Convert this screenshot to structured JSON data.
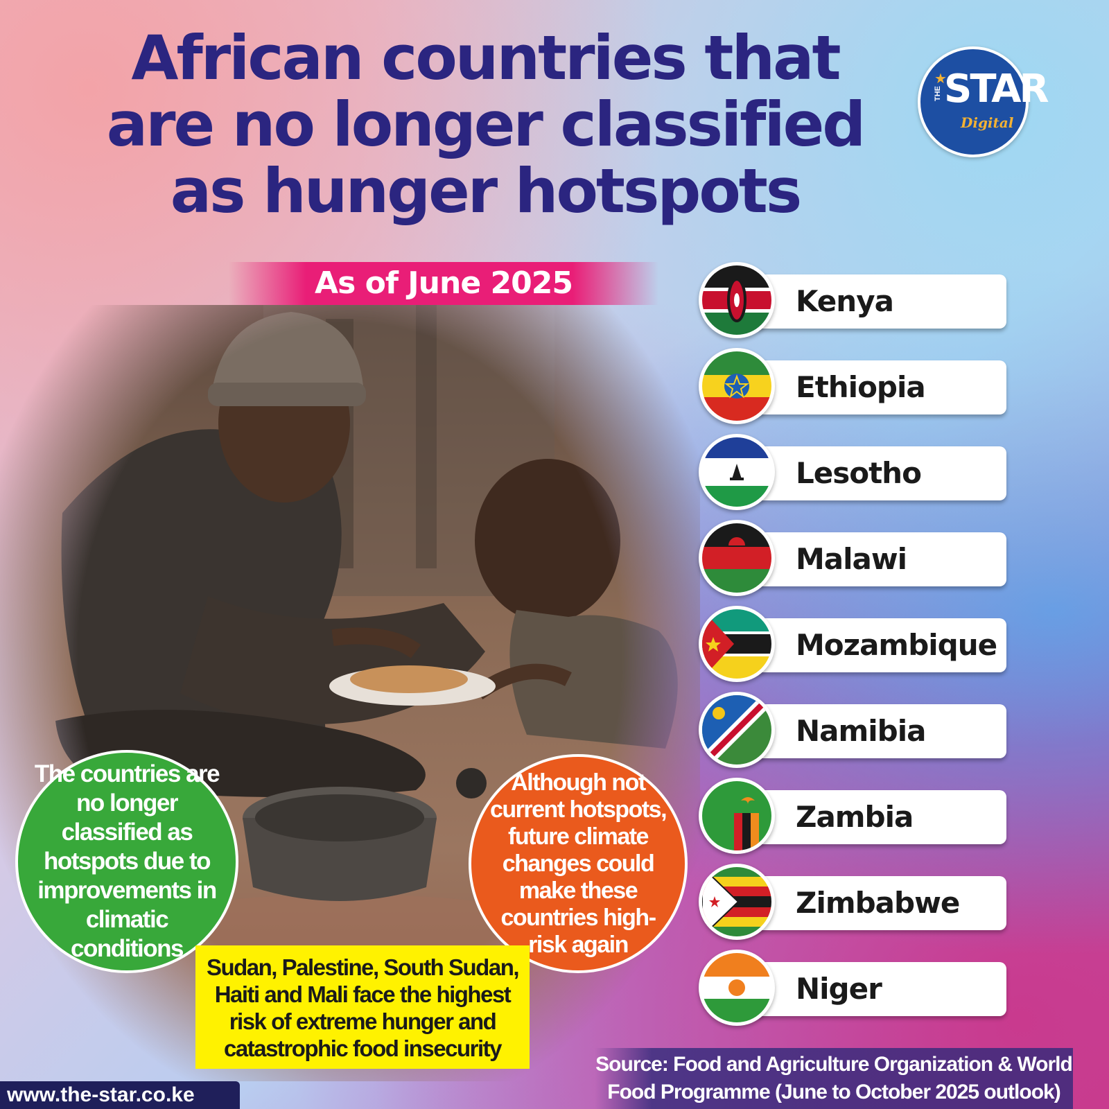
{
  "header": {
    "title_lines": [
      "African countries that",
      "are no longer classified",
      "as hunger hotspots"
    ],
    "date_label": "As of June 2025"
  },
  "logo": {
    "the": "THE",
    "main": "STAR",
    "sub": "Digital",
    "bg_color": "#1d4fa3",
    "accent_color": "#f3b234"
  },
  "countries": [
    {
      "name": "Kenya",
      "flag": "kenya-flag"
    },
    {
      "name": "Ethiopia",
      "flag": "ethiopia-flag"
    },
    {
      "name": "Lesotho",
      "flag": "lesotho-flag"
    },
    {
      "name": "Malawi",
      "flag": "malawi-flag"
    },
    {
      "name": "Mozambique",
      "flag": "mozambique-flag"
    },
    {
      "name": "Namibia",
      "flag": "namibia-flag"
    },
    {
      "name": "Zambia",
      "flag": "zambia-flag"
    },
    {
      "name": "Zimbabwe",
      "flag": "zimbabwe-flag"
    },
    {
      "name": "Niger",
      "flag": "niger-flag"
    }
  ],
  "callouts": {
    "green": "The countries are no longer classified as hotspots due to improvements in climatic conditions",
    "orange": "Although not current hotspots, future climate changes could make these countries high-risk again",
    "yellow": "Sudan, Palestine, South Sudan, Haiti and Mali face the highest risk of extreme hunger and catastrophic food insecurity"
  },
  "footer": {
    "website": "www.the-star.co.ke",
    "source_lines": [
      "Source: Food and Agriculture Organization & World",
      "Food Programme (June to October 2025 outlook)"
    ]
  },
  "colors": {
    "title": "#2b2580",
    "banner": "#e91e77",
    "green": "#38a83a",
    "orange": "#ea5a1d",
    "yellow": "#fff200",
    "footer_bg": "#1f1f5a"
  }
}
